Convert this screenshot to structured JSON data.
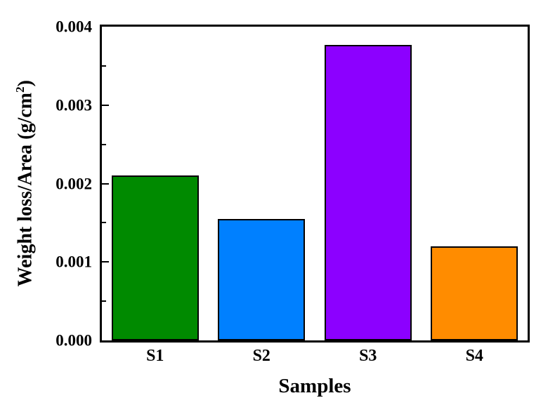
{
  "figure": {
    "background": "#ffffff"
  },
  "chart_data": {
    "type": "bar",
    "title": "",
    "categories": [
      "S1",
      "S2",
      "S3",
      "S4"
    ],
    "values": [
      0.0021,
      0.00155,
      0.00377,
      0.0012
    ],
    "bar_colors": [
      "#008A00",
      "#0080FF",
      "#8C00FF",
      "#FF8C00"
    ],
    "bar_border_color": "#000000",
    "bar_border_width_px": 2,
    "xlabel": "Samples",
    "ylabel": "Weight loss/Area (g/cm²)",
    "ylabel_parts": {
      "main": "Weight loss/Area (g/cm",
      "sup": "2",
      "end": ")"
    },
    "ylim": [
      0,
      0.004
    ],
    "ytick_labels": [
      "0.000",
      "0.001",
      "0.002",
      "0.003",
      "0.004"
    ],
    "ytick_values": [
      0,
      0.001,
      0.002,
      0.003,
      0.004
    ],
    "yminor_values": [
      0.0005,
      0.0015,
      0.0025,
      0.0035
    ],
    "grid": false,
    "legend": "none",
    "frame": "box",
    "tick_direction": "in",
    "axis_color": "#000000",
    "text_color": "#000000"
  }
}
